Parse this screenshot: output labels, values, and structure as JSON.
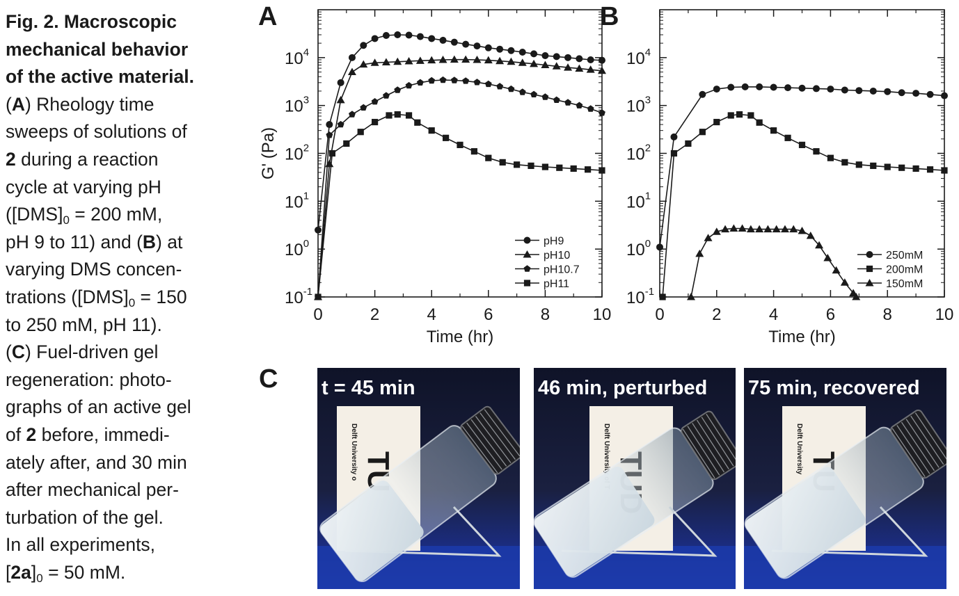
{
  "caption": {
    "title_lines": [
      "Fig. 2. Macroscopic",
      "mechanical behavior",
      "of the active material."
    ],
    "lines": [
      [
        {
          "t": "("
        },
        {
          "t": "A",
          "b": true
        },
        {
          "t": ") Rheology time"
        }
      ],
      [
        {
          "t": "sweeps of solutions of"
        }
      ],
      [
        {
          "t": "2",
          "b": true
        },
        {
          "t": " during a reaction"
        }
      ],
      [
        {
          "t": "cycle at varying pH"
        }
      ],
      [
        {
          "t": "([DMS]"
        },
        {
          "t": "0",
          "sub": true
        },
        {
          "t": " = 200 mM,"
        }
      ],
      [
        {
          "t": "pH 9 to 11) and ("
        },
        {
          "t": "B",
          "b": true
        },
        {
          "t": ") at"
        }
      ],
      [
        {
          "t": "varying DMS concen-"
        }
      ],
      [
        {
          "t": "trations ([DMS]"
        },
        {
          "t": "0",
          "sub": true
        },
        {
          "t": " = 150"
        }
      ],
      [
        {
          "t": "to 250 mM, pH 11)."
        }
      ],
      [
        {
          "t": "("
        },
        {
          "t": "C",
          "b": true
        },
        {
          "t": ") Fuel-driven gel"
        }
      ],
      [
        {
          "t": "regeneration: photo-"
        }
      ],
      [
        {
          "t": "graphs of an active gel"
        }
      ],
      [
        {
          "t": "of "
        },
        {
          "t": "2",
          "b": true
        },
        {
          "t": " before, immedi-"
        }
      ],
      [
        {
          "t": "ately after, and 30 min"
        }
      ],
      [
        {
          "t": "after mechanical per-"
        }
      ],
      [
        {
          "t": "turbation of the gel."
        }
      ],
      [
        {
          "t": "In all experiments,"
        }
      ],
      [
        {
          "t": "["
        },
        {
          "t": "2a",
          "b": true
        },
        {
          "t": "]"
        },
        {
          "t": "0",
          "sub": true
        },
        {
          "t": " = 50 mM."
        }
      ]
    ]
  },
  "chart_data": [
    {
      "panel": "A",
      "type": "line",
      "xlabel": "Time (hr)",
      "ylabel": "G' (Pa)",
      "xlim": [
        0,
        10
      ],
      "ylim": [
        0.1,
        100000
      ],
      "yscale": "log",
      "xticks": [
        "0",
        "2",
        "4",
        "6",
        "8",
        "10"
      ],
      "yticks": [
        {
          "base": "10",
          "exp": "-1"
        },
        {
          "base": "10",
          "exp": "0"
        },
        {
          "base": "10",
          "exp": "1"
        },
        {
          "base": "10",
          "exp": "2"
        },
        {
          "base": "10",
          "exp": "3"
        },
        {
          "base": "10",
          "exp": "4"
        }
      ],
      "grid": false,
      "legend_position": "bottom-right",
      "series": [
        {
          "name": "pH9",
          "marker": "circle",
          "x": [
            0,
            0.4,
            0.8,
            1.2,
            1.6,
            2,
            2.4,
            2.8,
            3.2,
            3.6,
            4,
            4.4,
            4.8,
            5.2,
            5.6,
            6,
            6.4,
            6.8,
            7.2,
            7.6,
            8,
            8.4,
            8.8,
            9.2,
            9.6,
            10
          ],
          "y": [
            2.5,
            400,
            3000,
            10000,
            18000,
            25000,
            29000,
            30000,
            29500,
            27500,
            25000,
            23000,
            21000,
            19000,
            17500,
            16000,
            15000,
            14000,
            13000,
            12000,
            11000,
            10500,
            10000,
            9500,
            9000,
            8800
          ]
        },
        {
          "name": "pH10",
          "marker": "triangle",
          "x": [
            0,
            0.4,
            0.8,
            1.2,
            1.6,
            2,
            2.4,
            2.8,
            3.2,
            3.6,
            4,
            4.4,
            4.8,
            5.2,
            5.6,
            6,
            6.4,
            6.8,
            7.2,
            7.6,
            8,
            8.4,
            8.8,
            9.2,
            9.6,
            10
          ],
          "y": [
            0.1,
            60,
            1300,
            5000,
            7200,
            7800,
            8000,
            8200,
            8400,
            8600,
            8800,
            9000,
            9100,
            9100,
            9000,
            8800,
            8500,
            8200,
            7800,
            7400,
            7000,
            6600,
            6200,
            5900,
            5600,
            5300
          ]
        },
        {
          "name": "pH10.7",
          "marker": "pentagon",
          "x": [
            0,
            0.4,
            0.8,
            1.2,
            1.6,
            2,
            2.4,
            2.8,
            3.2,
            3.6,
            4,
            4.4,
            4.8,
            5.2,
            5.6,
            6,
            6.4,
            6.8,
            7.2,
            7.6,
            8,
            8.4,
            8.8,
            9.2,
            9.6,
            10
          ],
          "y": [
            0.1,
            240,
            400,
            650,
            900,
            1200,
            1600,
            2100,
            2600,
            3000,
            3300,
            3400,
            3350,
            3250,
            3050,
            2800,
            2500,
            2200,
            1900,
            1700,
            1500,
            1300,
            1150,
            1000,
            850,
            700
          ]
        },
        {
          "name": "pH11",
          "marker": "square",
          "x": [
            0,
            0.5,
            1,
            1.5,
            2,
            2.5,
            2.8,
            3.2,
            3.5,
            4,
            4.5,
            5,
            5.5,
            6,
            6.5,
            7,
            7.5,
            8,
            8.5,
            9,
            9.5,
            10
          ],
          "y": [
            0.1,
            100,
            160,
            280,
            450,
            620,
            650,
            620,
            440,
            300,
            210,
            150,
            110,
            80,
            65,
            58,
            55,
            52,
            50,
            48,
            46,
            44
          ]
        }
      ]
    },
    {
      "panel": "B",
      "type": "line",
      "xlabel": "Time (hr)",
      "ylabel": "",
      "xlim": [
        0,
        10
      ],
      "ylim": [
        0.1,
        100000
      ],
      "yscale": "log",
      "xticks": [
        "0",
        "2",
        "4",
        "6",
        "8",
        "10"
      ],
      "yticks": [
        {
          "base": "10",
          "exp": "-1"
        },
        {
          "base": "10",
          "exp": "0"
        },
        {
          "base": "10",
          "exp": "1"
        },
        {
          "base": "10",
          "exp": "2"
        },
        {
          "base": "10",
          "exp": "3"
        },
        {
          "base": "10",
          "exp": "4"
        }
      ],
      "grid": false,
      "legend_position": "bottom-right",
      "series": [
        {
          "name": "250mM",
          "marker": "circle",
          "x": [
            0,
            0.5,
            1.5,
            2,
            2.5,
            3,
            3.5,
            4,
            4.5,
            5,
            5.5,
            6,
            6.5,
            7,
            7.5,
            8,
            8.5,
            9,
            9.5,
            10
          ],
          "y": [
            1.1,
            220,
            1700,
            2200,
            2400,
            2450,
            2450,
            2400,
            2350,
            2300,
            2250,
            2200,
            2100,
            2050,
            2000,
            1950,
            1850,
            1800,
            1700,
            1600
          ]
        },
        {
          "name": "200mM",
          "marker": "square",
          "x": [
            0.1,
            0.5,
            1,
            1.5,
            2,
            2.5,
            2.8,
            3.2,
            3.5,
            4,
            4.5,
            5,
            5.5,
            6,
            6.5,
            7,
            7.5,
            8,
            8.5,
            9,
            9.5,
            10
          ],
          "y": [
            0.1,
            100,
            160,
            280,
            450,
            620,
            650,
            620,
            440,
            300,
            210,
            150,
            110,
            80,
            65,
            58,
            55,
            52,
            50,
            48,
            46,
            44
          ]
        },
        {
          "name": "150mM",
          "marker": "triangle",
          "x": [
            1.1,
            1.4,
            1.7,
            2,
            2.3,
            2.6,
            2.9,
            3.2,
            3.5,
            3.8,
            4.1,
            4.4,
            4.7,
            5,
            5.3,
            5.6,
            5.9,
            6.2,
            6.5,
            6.8,
            6.9
          ],
          "y": [
            0.1,
            0.8,
            1.7,
            2.3,
            2.6,
            2.7,
            2.7,
            2.6,
            2.6,
            2.6,
            2.6,
            2.6,
            2.6,
            2.4,
            1.9,
            1.2,
            0.65,
            0.36,
            0.2,
            0.12,
            0.1
          ]
        }
      ]
    }
  ],
  "panel_c": {
    "letter": "C",
    "photos": [
      {
        "label": "t = 45 min",
        "sublabel": "Delft University o",
        "logo_text": "TU"
      },
      {
        "label": "46 min, perturbed",
        "sublabel": "Delft University of T",
        "logo_text": "TUD"
      },
      {
        "label": "75 min, recovered",
        "sublabel": "Delft University",
        "logo_text": "TU"
      }
    ]
  },
  "colors": {
    "ink": "#1a1a1a",
    "photo_background": "#12162e",
    "table": "#1c3aa8",
    "gel": "#dfe8ee"
  }
}
